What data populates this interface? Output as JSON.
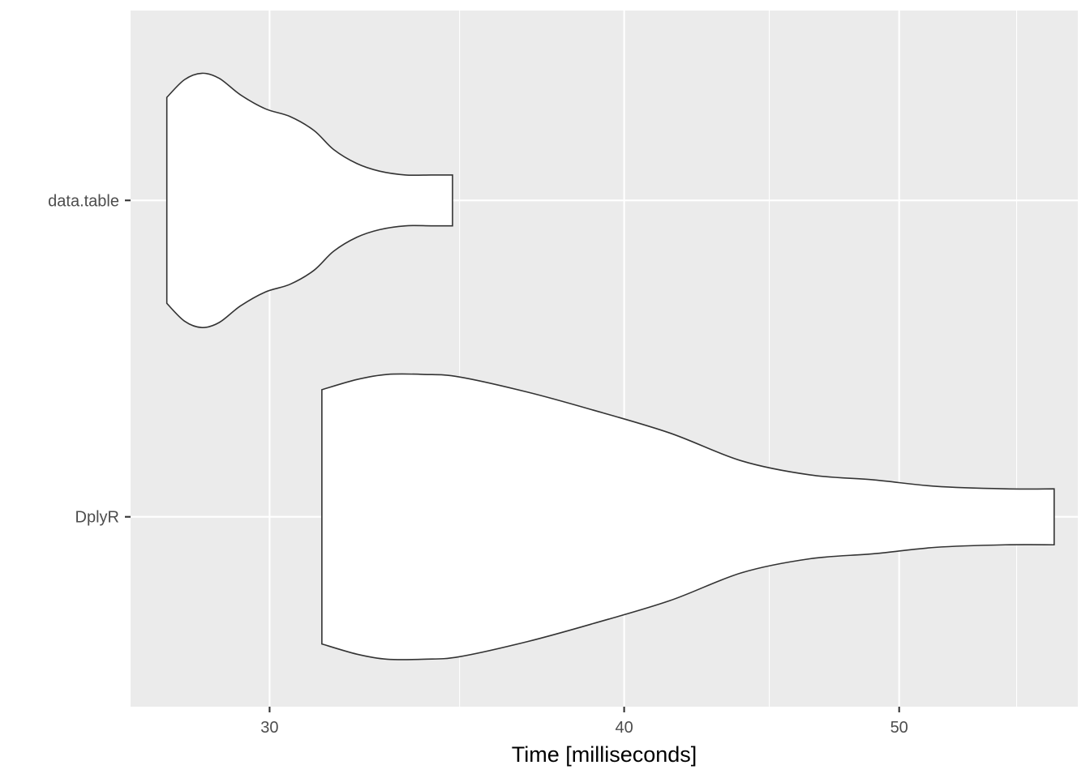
{
  "chart_data": {
    "type": "violin",
    "orientation": "horizontal",
    "xlabel": "Time [milliseconds]",
    "ylabel": "",
    "xscale": "log",
    "xlim": [
      26.8,
      57.8
    ],
    "x_major_ticks": [
      30,
      40,
      50
    ],
    "x_minor_ticks": [
      35,
      45,
      55
    ],
    "categories": [
      "DplyR",
      "data.table"
    ],
    "grid": true,
    "series": [
      {
        "category": "data.table",
        "density": [
          [
            27.6,
            0.81
          ],
          [
            28.0,
            0.95
          ],
          [
            28.4,
            1.0
          ],
          [
            28.8,
            0.96
          ],
          [
            29.3,
            0.83
          ],
          [
            29.9,
            0.72
          ],
          [
            30.5,
            0.66
          ],
          [
            31.1,
            0.55
          ],
          [
            31.6,
            0.4
          ],
          [
            32.2,
            0.29
          ],
          [
            32.8,
            0.23
          ],
          [
            33.5,
            0.2
          ],
          [
            34.2,
            0.2
          ],
          [
            34.8,
            0.2
          ]
        ]
      },
      {
        "category": "DplyR",
        "density": [
          [
            31.3,
            1.0
          ],
          [
            32.2,
            1.08
          ],
          [
            33.0,
            1.12
          ],
          [
            34.0,
            1.12
          ],
          [
            35.0,
            1.1
          ],
          [
            37.0,
            0.98
          ],
          [
            39.0,
            0.84
          ],
          [
            41.5,
            0.66
          ],
          [
            44.0,
            0.44
          ],
          [
            46.5,
            0.33
          ],
          [
            49.0,
            0.29
          ],
          [
            51.5,
            0.24
          ],
          [
            54.5,
            0.22
          ],
          [
            56.7,
            0.22
          ]
        ]
      }
    ]
  },
  "colors": {
    "panel": "#EBEBEB",
    "grid": "#FFFFFF",
    "outline": "#333333",
    "fill": "#FFFFFF"
  }
}
